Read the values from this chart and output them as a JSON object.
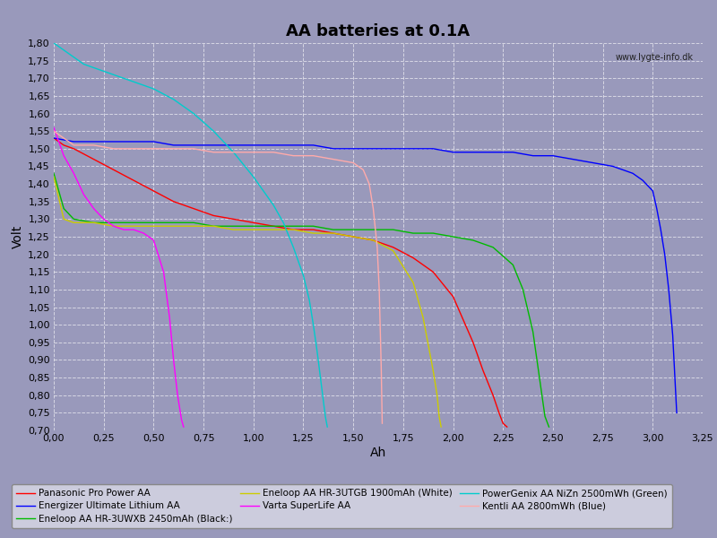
{
  "title": "AA batteries at 0.1A",
  "xlabel": "Ah",
  "ylabel": "Volt",
  "watermark": "www.lygte-info.dk",
  "xlim": [
    0,
    3.25
  ],
  "ylim": [
    0.7,
    1.8
  ],
  "xticks": [
    0.0,
    0.25,
    0.5,
    0.75,
    1.0,
    1.25,
    1.5,
    1.75,
    2.0,
    2.25,
    2.5,
    2.75,
    3.0,
    3.25
  ],
  "yticks": [
    0.7,
    0.75,
    0.8,
    0.85,
    0.9,
    0.95,
    1.0,
    1.05,
    1.1,
    1.15,
    1.2,
    1.25,
    1.3,
    1.35,
    1.4,
    1.45,
    1.5,
    1.55,
    1.6,
    1.65,
    1.7,
    1.75,
    1.8
  ],
  "background_color": "#9999bb",
  "plot_bg_color": "#9999bb",
  "grid_color": "#ffffff",
  "series": [
    {
      "label": "Panasonic Pro Power AA",
      "color": "#ff0000",
      "x": [
        0.0,
        0.05,
        0.1,
        0.2,
        0.3,
        0.4,
        0.5,
        0.6,
        0.7,
        0.8,
        0.9,
        1.0,
        1.1,
        1.2,
        1.3,
        1.4,
        1.5,
        1.6,
        1.7,
        1.8,
        1.9,
        2.0,
        2.1,
        2.15,
        2.2,
        2.23,
        2.25,
        2.27
      ],
      "y": [
        1.53,
        1.51,
        1.5,
        1.47,
        1.44,
        1.41,
        1.38,
        1.35,
        1.33,
        1.31,
        1.3,
        1.29,
        1.28,
        1.27,
        1.27,
        1.26,
        1.25,
        1.24,
        1.22,
        1.19,
        1.15,
        1.08,
        0.95,
        0.87,
        0.8,
        0.75,
        0.72,
        0.71
      ]
    },
    {
      "label": "Energizer Ultimate Lithium AA",
      "color": "#0000ff",
      "x": [
        0.0,
        0.1,
        0.2,
        0.3,
        0.4,
        0.5,
        0.6,
        0.7,
        0.8,
        0.9,
        1.0,
        1.1,
        1.2,
        1.3,
        1.4,
        1.5,
        1.6,
        1.7,
        1.8,
        1.9,
        2.0,
        2.1,
        2.2,
        2.3,
        2.4,
        2.5,
        2.6,
        2.7,
        2.8,
        2.9,
        2.95,
        3.0,
        3.02,
        3.04,
        3.06,
        3.08,
        3.1,
        3.12
      ],
      "y": [
        1.53,
        1.52,
        1.52,
        1.52,
        1.52,
        1.52,
        1.51,
        1.51,
        1.51,
        1.51,
        1.51,
        1.51,
        1.51,
        1.51,
        1.5,
        1.5,
        1.5,
        1.5,
        1.5,
        1.5,
        1.49,
        1.49,
        1.49,
        1.49,
        1.48,
        1.48,
        1.47,
        1.46,
        1.45,
        1.43,
        1.41,
        1.38,
        1.33,
        1.27,
        1.2,
        1.1,
        0.97,
        0.75
      ]
    },
    {
      "label": "Eneloop AA HR-3UWXB 2450mAh (Black:)",
      "color": "#00bb00",
      "x": [
        0.0,
        0.05,
        0.1,
        0.2,
        0.3,
        0.4,
        0.5,
        0.6,
        0.7,
        0.8,
        0.9,
        1.0,
        1.1,
        1.2,
        1.3,
        1.4,
        1.5,
        1.6,
        1.7,
        1.8,
        1.9,
        2.0,
        2.1,
        2.2,
        2.3,
        2.35,
        2.4,
        2.42,
        2.44,
        2.46,
        2.48
      ],
      "y": [
        1.43,
        1.33,
        1.3,
        1.29,
        1.29,
        1.29,
        1.29,
        1.29,
        1.29,
        1.28,
        1.28,
        1.28,
        1.28,
        1.28,
        1.28,
        1.27,
        1.27,
        1.27,
        1.27,
        1.26,
        1.26,
        1.25,
        1.24,
        1.22,
        1.17,
        1.1,
        0.98,
        0.9,
        0.82,
        0.74,
        0.71
      ]
    },
    {
      "label": "Eneloop AA HR-3UTGB 1900mAh (White)",
      "color": "#cccc00",
      "x": [
        0.0,
        0.05,
        0.1,
        0.2,
        0.3,
        0.4,
        0.5,
        0.6,
        0.7,
        0.8,
        0.9,
        1.0,
        1.1,
        1.2,
        1.3,
        1.4,
        1.5,
        1.6,
        1.7,
        1.8,
        1.85,
        1.88,
        1.9,
        1.92,
        1.93,
        1.94
      ],
      "y": [
        1.42,
        1.3,
        1.29,
        1.29,
        1.28,
        1.28,
        1.28,
        1.28,
        1.28,
        1.28,
        1.27,
        1.27,
        1.27,
        1.27,
        1.26,
        1.26,
        1.25,
        1.24,
        1.21,
        1.12,
        1.02,
        0.93,
        0.87,
        0.8,
        0.74,
        0.71
      ]
    },
    {
      "label": "Varta SuperLife AA",
      "color": "#ff00ff",
      "x": [
        0.0,
        0.05,
        0.1,
        0.15,
        0.2,
        0.25,
        0.3,
        0.35,
        0.4,
        0.45,
        0.5,
        0.55,
        0.58,
        0.6,
        0.62,
        0.64,
        0.65
      ],
      "y": [
        1.56,
        1.48,
        1.43,
        1.37,
        1.33,
        1.3,
        1.28,
        1.27,
        1.27,
        1.26,
        1.24,
        1.15,
        1.02,
        0.9,
        0.8,
        0.73,
        0.71
      ]
    },
    {
      "label": "PowerGenix AA NiZn 2500mWh (Green)",
      "color": "#00cccc",
      "x": [
        0.0,
        0.05,
        0.1,
        0.15,
        0.2,
        0.3,
        0.4,
        0.5,
        0.6,
        0.7,
        0.8,
        0.9,
        1.0,
        1.1,
        1.15,
        1.2,
        1.25,
        1.28,
        1.3,
        1.32,
        1.34,
        1.36,
        1.37
      ],
      "y": [
        1.8,
        1.78,
        1.76,
        1.74,
        1.73,
        1.71,
        1.69,
        1.67,
        1.64,
        1.6,
        1.55,
        1.49,
        1.42,
        1.34,
        1.29,
        1.22,
        1.14,
        1.07,
        1.0,
        0.92,
        0.83,
        0.74,
        0.71
      ]
    },
    {
      "label": "Kentli AA 2800mWh (Blue)",
      "color": "#ffaaaa",
      "x": [
        0.0,
        0.1,
        0.2,
        0.3,
        0.4,
        0.5,
        0.6,
        0.7,
        0.8,
        0.9,
        1.0,
        1.1,
        1.2,
        1.3,
        1.4,
        1.5,
        1.55,
        1.58,
        1.6,
        1.62,
        1.63,
        1.64,
        1.645
      ],
      "y": [
        1.55,
        1.51,
        1.51,
        1.5,
        1.5,
        1.5,
        1.5,
        1.5,
        1.49,
        1.49,
        1.49,
        1.49,
        1.48,
        1.48,
        1.47,
        1.46,
        1.44,
        1.4,
        1.33,
        1.22,
        1.1,
        0.88,
        0.72
      ]
    }
  ],
  "legend_entries": [
    {
      "label": "Panasonic Pro Power AA",
      "color": "#ff0000"
    },
    {
      "label": "Energizer Ultimate Lithium AA",
      "color": "#0000ff"
    },
    {
      "label": "Eneloop AA HR-3UWXB 2450mAh (Black:)",
      "color": "#00bb00"
    },
    {
      "label": "Eneloop AA HR-3UTGB 1900mAh (White)",
      "color": "#cccc00"
    },
    {
      "label": "Varta SuperLife AA",
      "color": "#ff00ff"
    },
    {
      "label": "PowerGenix AA NiZn 2500mWh (Green)",
      "color": "#00cccc"
    },
    {
      "label": "Kentli AA 2800mWh (Blue)",
      "color": "#ffaaaa"
    }
  ]
}
